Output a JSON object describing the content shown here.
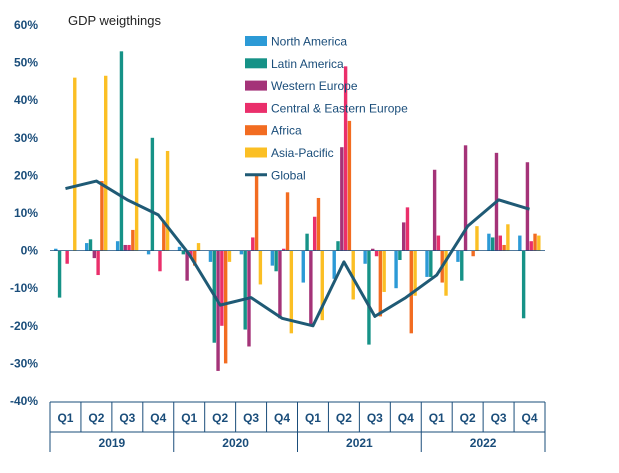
{
  "chart_data": {
    "type": "bar",
    "title": "GDP weigthings",
    "ylim": [
      -40,
      60
    ],
    "yticks": [
      -40,
      -30,
      -20,
      -10,
      0,
      10,
      20,
      30,
      40,
      50,
      60
    ],
    "ytick_labels": [
      "-40%",
      "-30%",
      "-20%",
      "-10%",
      "0%",
      "10%",
      "20%",
      "30%",
      "40%",
      "50%",
      "60%"
    ],
    "categories": [
      "Q1",
      "Q2",
      "Q3",
      "Q4",
      "Q1",
      "Q2",
      "Q3",
      "Q4",
      "Q1",
      "Q2",
      "Q3",
      "Q4",
      "Q1",
      "Q2",
      "Q3",
      "Q4"
    ],
    "years": [
      "2019",
      "2020",
      "2021",
      "2022"
    ],
    "series": [
      {
        "name": "North America",
        "color": "#2c9ad6",
        "values": [
          0.5,
          2.0,
          2.5,
          -1.0,
          1.0,
          -3.0,
          -1.0,
          -4.0,
          -8.5,
          -7.5,
          -3.5,
          -10.0,
          -7.0,
          -3.0,
          4.5,
          4.0
        ]
      },
      {
        "name": "Latin America",
        "color": "#169287",
        "values": [
          -12.5,
          3.0,
          53.0,
          30.0,
          -1.0,
          -24.5,
          -21.0,
          -5.5,
          4.5,
          2.5,
          -25.0,
          -2.5,
          -7.0,
          -8.0,
          3.5,
          -18.0
        ]
      },
      {
        "name": "Western Europe",
        "color": "#a43378",
        "values": [
          0.0,
          -2.0,
          1.5,
          0.0,
          -8.0,
          -32.0,
          -25.5,
          -18.0,
          -20.0,
          27.5,
          0.5,
          7.5,
          21.5,
          28.0,
          26.0,
          23.5
        ]
      },
      {
        "name": "Central & Eastern Europe",
        "color": "#ea2f6b",
        "values": [
          -3.5,
          -6.5,
          1.5,
          -5.5,
          -2.0,
          -20.0,
          3.5,
          0.5,
          9.0,
          49.0,
          -1.5,
          11.5,
          4.0,
          0.0,
          4.0,
          2.5
        ]
      },
      {
        "name": "Africa",
        "color": "#f26c21",
        "values": [
          0.0,
          18.5,
          5.5,
          8.0,
          -4.0,
          -30.0,
          20.0,
          15.5,
          14.0,
          34.5,
          -17.5,
          -22.0,
          -8.5,
          -1.5,
          1.5,
          4.5
        ]
      },
      {
        "name": "Asia-Pacific",
        "color": "#fbbf24",
        "values": [
          46.0,
          46.5,
          24.5,
          26.5,
          2.0,
          -3.0,
          -9.0,
          -22.0,
          -18.5,
          -13.0,
          -11.0,
          -12.0,
          -12.0,
          6.5,
          7.0,
          4.0
        ]
      }
    ],
    "line_series": {
      "name": "Global",
      "color": "#1f5a75",
      "values": [
        16.5,
        18.5,
        13.5,
        9.5,
        -1.0,
        -14.5,
        -12.5,
        -18.0,
        -20.0,
        -3.0,
        -17.5,
        -12.5,
        -6.5,
        6.5,
        13.5,
        11.0
      ]
    }
  }
}
